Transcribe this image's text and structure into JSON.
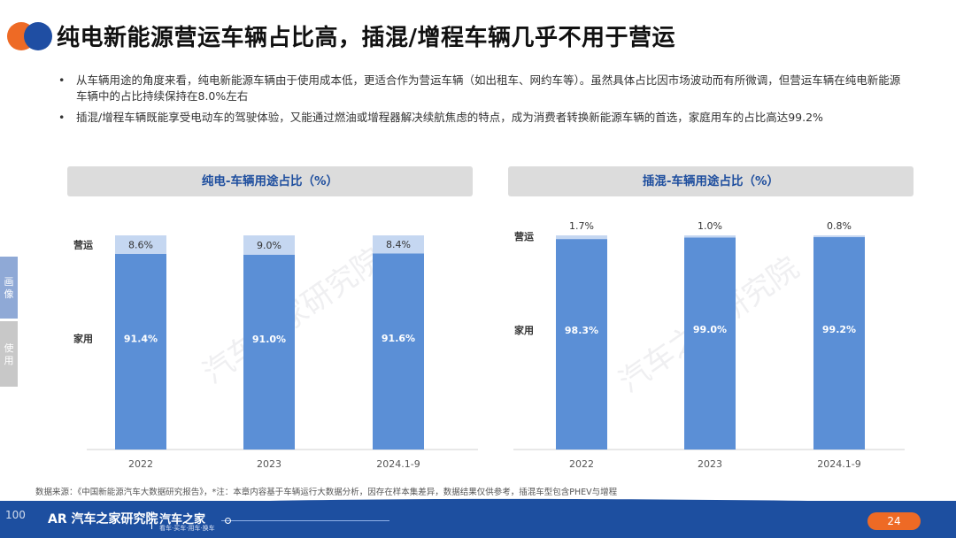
{
  "title": "纯电新能源营运车辆占比高，插混/增程车辆几乎不用于营运",
  "bullet_marker": "•",
  "bullets": [
    "从车辆用途的角度来看，纯电新能源车辆由于使用成本低，更适合作为营运车辆（如出租车、网约车等）。虽然具体占比因市场波动而有所微调，但营运车辆在纯电新能源车辆中的占比持续保持在8.0%左右",
    "插混/增程车辆既能享受电动车的驾驶体验，又能通过燃油或增程器解决续航焦虑的特点，成为消费者转换新能源车辆的首选，家庭用车的占比高达99.2%"
  ],
  "side_tabs": [
    "画像",
    "使用"
  ],
  "watermark": "汽车之家研究院",
  "source": "数据来源：《中国新能源汽车大数据研究报告》，*注：本章内容基于车辆运行大数据分析，因存在样本集差异，数据结果仅供参考，插混车型包含PHEV与增程",
  "footer": {
    "logo": "AR 汽车之家研究院",
    "brand": "汽车之家",
    "slogan": "看车·买车·用车·换车",
    "page_number": "24",
    "corner": "100"
  },
  "colors": {
    "home": "#5b8fd6",
    "commercial": "#c5d7f1",
    "accent": "#ee6a25",
    "brand": "#1d4fa0"
  },
  "chart_data": [
    {
      "type": "bar",
      "stacked": true,
      "title": "纯电-车辆用途占比（%）",
      "categories": [
        "2022",
        "2023",
        "2024.1-9"
      ],
      "series": [
        {
          "name": "家用",
          "values": [
            91.4,
            91.0,
            91.6
          ],
          "labels": [
            "91.4%",
            "91.0%",
            "91.6%"
          ]
        },
        {
          "name": "营运",
          "values": [
            8.6,
            9.0,
            8.4
          ],
          "labels": [
            "8.6%",
            "9.0%",
            "8.4%"
          ]
        }
      ],
      "ylim": [
        0,
        100
      ]
    },
    {
      "type": "bar",
      "stacked": true,
      "title": "插混-车辆用途占比（%）",
      "categories": [
        "2022",
        "2023",
        "2024.1-9"
      ],
      "series": [
        {
          "name": "家用",
          "values": [
            98.3,
            99.0,
            99.2
          ],
          "labels": [
            "98.3%",
            "99.0%",
            "99.2%"
          ]
        },
        {
          "name": "营运",
          "values": [
            1.7,
            1.0,
            0.8
          ],
          "labels": [
            "1.7%",
            "1.0%",
            "0.8%"
          ]
        }
      ],
      "ylim": [
        0,
        100
      ]
    }
  ]
}
